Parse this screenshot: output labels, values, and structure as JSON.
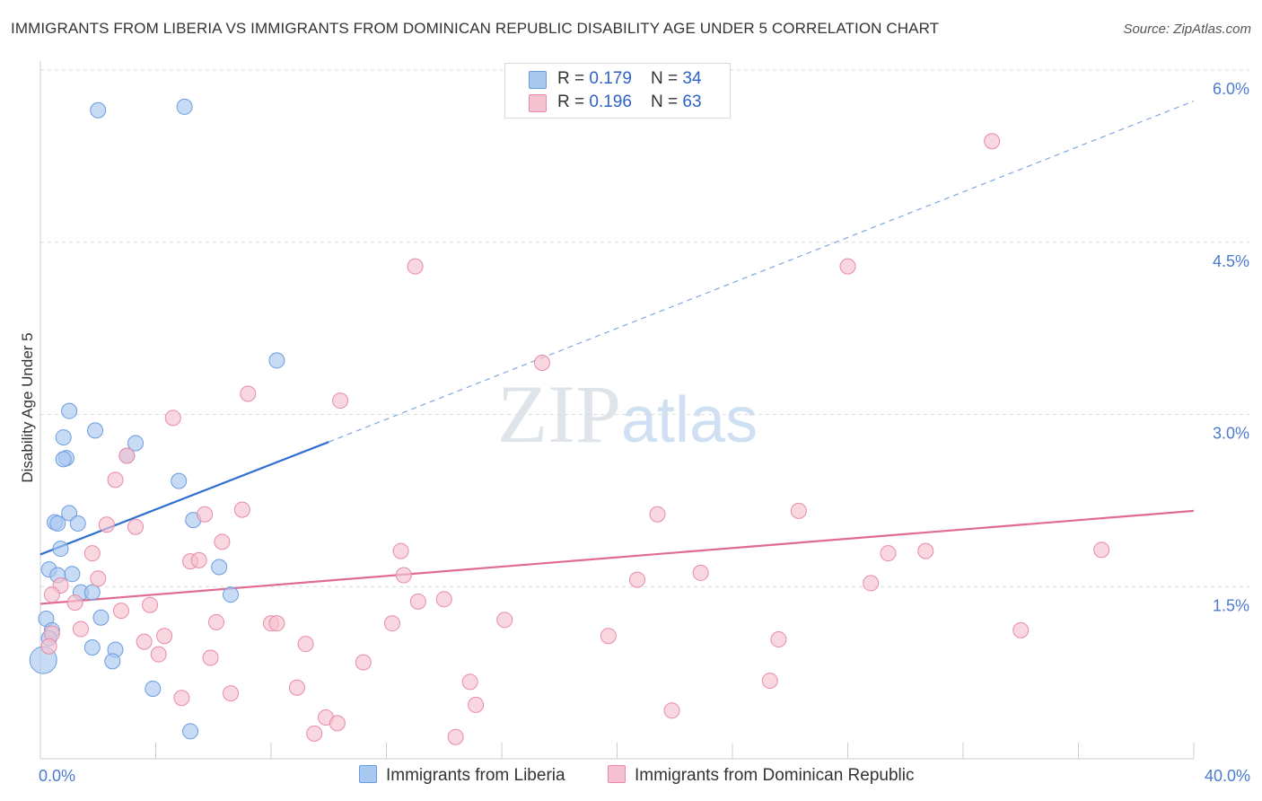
{
  "title": "IMMIGRANTS FROM LIBERIA VS IMMIGRANTS FROM DOMINICAN REPUBLIC DISABILITY AGE UNDER 5 CORRELATION CHART",
  "source": "Source: ZipAtlas.com",
  "watermark": {
    "zip": "ZIP",
    "atlas": "atlas"
  },
  "colors": {
    "liberia": "#a9c8f0",
    "liberia_stroke": "#6b9be0",
    "liberia_line": "#2f6fd0",
    "dominican": "#f6c1d0",
    "dominican_stroke": "#e88aa6",
    "dominican_line": "#e06a92",
    "axis_text": "#4a7bd0"
  },
  "legend": {
    "liberia": {
      "r_label": "R = ",
      "r_value": "0.179",
      "n_label": "N = ",
      "n_value": "34"
    },
    "dominican": {
      "r_label": "R = ",
      "r_value": "0.196",
      "n_label": "N = ",
      "n_value": "63"
    }
  },
  "chart_data": {
    "type": "scatter",
    "title": "IMMIGRANTS FROM LIBERIA VS IMMIGRANTS FROM DOMINICAN REPUBLIC DISABILITY AGE UNDER 5 CORRELATION CHART",
    "xlabel": "",
    "ylabel": "Disability Age Under 5",
    "xlim": [
      0,
      40
    ],
    "ylim": [
      0,
      6.2
    ],
    "x_tick_labels": {
      "min": "0.0%",
      "max": "40.0%"
    },
    "y_ticks": [
      {
        "value": 1.5,
        "label": "1.5%"
      },
      {
        "value": 3.0,
        "label": "3.0%"
      },
      {
        "value": 4.5,
        "label": "4.5%"
      },
      {
        "value": 6.0,
        "label": "6.0%"
      }
    ],
    "series": [
      {
        "name": "Immigrants from Liberia",
        "color_key": "liberia",
        "points": [
          {
            "x": 2.0,
            "y": 5.65
          },
          {
            "x": 5.0,
            "y": 5.68
          },
          {
            "x": 8.2,
            "y": 3.47
          },
          {
            "x": 1.0,
            "y": 3.03
          },
          {
            "x": 0.8,
            "y": 2.8
          },
          {
            "x": 1.9,
            "y": 2.86
          },
          {
            "x": 3.3,
            "y": 2.75
          },
          {
            "x": 0.9,
            "y": 2.62
          },
          {
            "x": 0.8,
            "y": 2.61
          },
          {
            "x": 3.0,
            "y": 2.64
          },
          {
            "x": 4.8,
            "y": 2.42
          },
          {
            "x": 1.0,
            "y": 2.14
          },
          {
            "x": 0.5,
            "y": 2.06
          },
          {
            "x": 0.6,
            "y": 2.05
          },
          {
            "x": 1.3,
            "y": 2.05
          },
          {
            "x": 5.3,
            "y": 2.08
          },
          {
            "x": 0.7,
            "y": 1.83
          },
          {
            "x": 0.3,
            "y": 1.65
          },
          {
            "x": 1.1,
            "y": 1.61
          },
          {
            "x": 0.6,
            "y": 1.6
          },
          {
            "x": 6.2,
            "y": 1.67
          },
          {
            "x": 1.4,
            "y": 1.45
          },
          {
            "x": 1.8,
            "y": 1.45
          },
          {
            "x": 6.6,
            "y": 1.43
          },
          {
            "x": 0.2,
            "y": 1.22
          },
          {
            "x": 2.1,
            "y": 1.23
          },
          {
            "x": 0.4,
            "y": 1.12
          },
          {
            "x": 0.3,
            "y": 1.05
          },
          {
            "x": 1.8,
            "y": 0.97
          },
          {
            "x": 2.6,
            "y": 0.95
          },
          {
            "x": 2.5,
            "y": 0.85
          },
          {
            "x": 0.1,
            "y": 0.86,
            "big": true
          },
          {
            "x": 3.9,
            "y": 0.61
          },
          {
            "x": 5.2,
            "y": 0.24
          }
        ]
      },
      {
        "name": "Immigrants from Dominican Republic",
        "color_key": "dominican",
        "points": [
          {
            "x": 33.0,
            "y": 5.38
          },
          {
            "x": 13.0,
            "y": 4.29
          },
          {
            "x": 28.0,
            "y": 4.29
          },
          {
            "x": 17.4,
            "y": 3.45
          },
          {
            "x": 7.2,
            "y": 3.18
          },
          {
            "x": 10.4,
            "y": 3.12
          },
          {
            "x": 4.6,
            "y": 2.97
          },
          {
            "x": 3.0,
            "y": 2.64
          },
          {
            "x": 2.6,
            "y": 2.43
          },
          {
            "x": 7.0,
            "y": 2.17
          },
          {
            "x": 5.7,
            "y": 2.13
          },
          {
            "x": 21.4,
            "y": 2.13
          },
          {
            "x": 26.3,
            "y": 2.16
          },
          {
            "x": 2.3,
            "y": 2.04
          },
          {
            "x": 3.3,
            "y": 2.02
          },
          {
            "x": 6.3,
            "y": 1.89
          },
          {
            "x": 1.8,
            "y": 1.79
          },
          {
            "x": 12.5,
            "y": 1.81
          },
          {
            "x": 29.4,
            "y": 1.79
          },
          {
            "x": 30.7,
            "y": 1.81
          },
          {
            "x": 36.8,
            "y": 1.82
          },
          {
            "x": 5.2,
            "y": 1.72
          },
          {
            "x": 5.5,
            "y": 1.73
          },
          {
            "x": 22.9,
            "y": 1.62
          },
          {
            "x": 12.6,
            "y": 1.6
          },
          {
            "x": 2.0,
            "y": 1.57
          },
          {
            "x": 20.7,
            "y": 1.56
          },
          {
            "x": 28.8,
            "y": 1.53
          },
          {
            "x": 0.7,
            "y": 1.51
          },
          {
            "x": 0.4,
            "y": 1.43
          },
          {
            "x": 14.0,
            "y": 1.39
          },
          {
            "x": 13.1,
            "y": 1.37
          },
          {
            "x": 1.2,
            "y": 1.36
          },
          {
            "x": 3.8,
            "y": 1.34
          },
          {
            "x": 2.8,
            "y": 1.29
          },
          {
            "x": 16.1,
            "y": 1.21
          },
          {
            "x": 6.1,
            "y": 1.19
          },
          {
            "x": 8.0,
            "y": 1.18
          },
          {
            "x": 8.2,
            "y": 1.18
          },
          {
            "x": 12.2,
            "y": 1.18
          },
          {
            "x": 1.4,
            "y": 1.13
          },
          {
            "x": 34.0,
            "y": 1.12
          },
          {
            "x": 0.4,
            "y": 1.09
          },
          {
            "x": 4.3,
            "y": 1.07
          },
          {
            "x": 19.7,
            "y": 1.07
          },
          {
            "x": 25.6,
            "y": 1.04
          },
          {
            "x": 3.6,
            "y": 1.02
          },
          {
            "x": 9.2,
            "y": 1.0
          },
          {
            "x": 0.3,
            "y": 0.98
          },
          {
            "x": 4.1,
            "y": 0.91
          },
          {
            "x": 5.9,
            "y": 0.88
          },
          {
            "x": 11.2,
            "y": 0.84
          },
          {
            "x": 14.9,
            "y": 0.67
          },
          {
            "x": 25.3,
            "y": 0.68
          },
          {
            "x": 8.9,
            "y": 0.62
          },
          {
            "x": 6.6,
            "y": 0.57
          },
          {
            "x": 4.9,
            "y": 0.53
          },
          {
            "x": 15.1,
            "y": 0.47
          },
          {
            "x": 21.9,
            "y": 0.42
          },
          {
            "x": 9.9,
            "y": 0.36
          },
          {
            "x": 10.3,
            "y": 0.31
          },
          {
            "x": 9.5,
            "y": 0.22
          },
          {
            "x": 14.4,
            "y": 0.19
          }
        ]
      }
    ],
    "trend_lines": [
      {
        "series": "Immigrants from Liberia",
        "x_start": 0,
        "y_start": 1.78,
        "x_solid_end": 10.0,
        "y_solid_end": 2.76,
        "x_end": 40.0,
        "y_end": 5.73,
        "dashed_extension": true
      },
      {
        "series": "Immigrants from Dominican Republic",
        "x_start": 0,
        "y_start": 1.35,
        "x_end": 40.0,
        "y_end": 2.16,
        "dashed_extension": false
      }
    ]
  },
  "bottom_legend": {
    "liberia": "Immigrants from Liberia",
    "dominican": "Immigrants from Dominican Republic"
  }
}
